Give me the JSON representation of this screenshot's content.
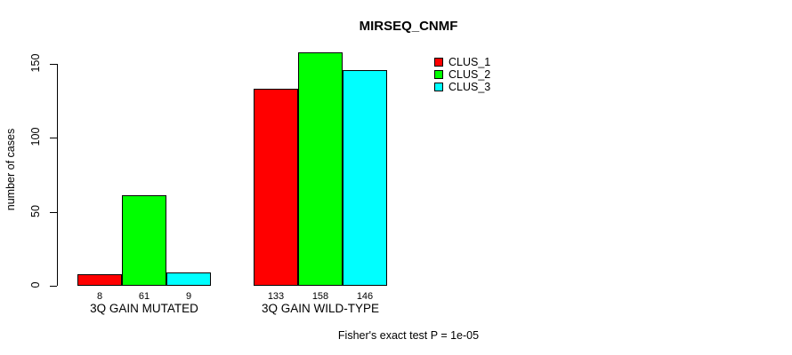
{
  "page": {
    "background_color": "#FFFFFF",
    "text_color": "#000000"
  },
  "chart_data": {
    "type": "bar",
    "title": "MIRSEQ_CNMF",
    "xlabel": "",
    "ylabel": "number of cases",
    "categories": [
      "3Q GAIN MUTATED",
      "3Q GAIN WILD-TYPE"
    ],
    "series": [
      {
        "name": "CLUS_1",
        "color": "#FF0000",
        "values": [
          8,
          133
        ]
      },
      {
        "name": "CLUS_2",
        "color": "#00FF00",
        "values": [
          61,
          158
        ]
      },
      {
        "name": "CLUS_3",
        "color": "#00FFFF",
        "values": [
          9,
          146
        ]
      }
    ],
    "bar_value_labels": [
      [
        8,
        61,
        9
      ],
      [
        133,
        158,
        146
      ]
    ],
    "yticks": [
      0,
      50,
      100,
      150
    ],
    "ylim": [
      0,
      150
    ],
    "grid": false,
    "bar_border_color": "#000000",
    "legend_position": "top-right",
    "legend": [
      {
        "label": "CLUS_1",
        "color": "#FF0000"
      },
      {
        "label": "CLUS_2",
        "color": "#00FF00"
      },
      {
        "label": "CLUS_3",
        "color": "#00FFFF"
      }
    ],
    "annotation": "Fisher's exact test P = 1e-05"
  }
}
